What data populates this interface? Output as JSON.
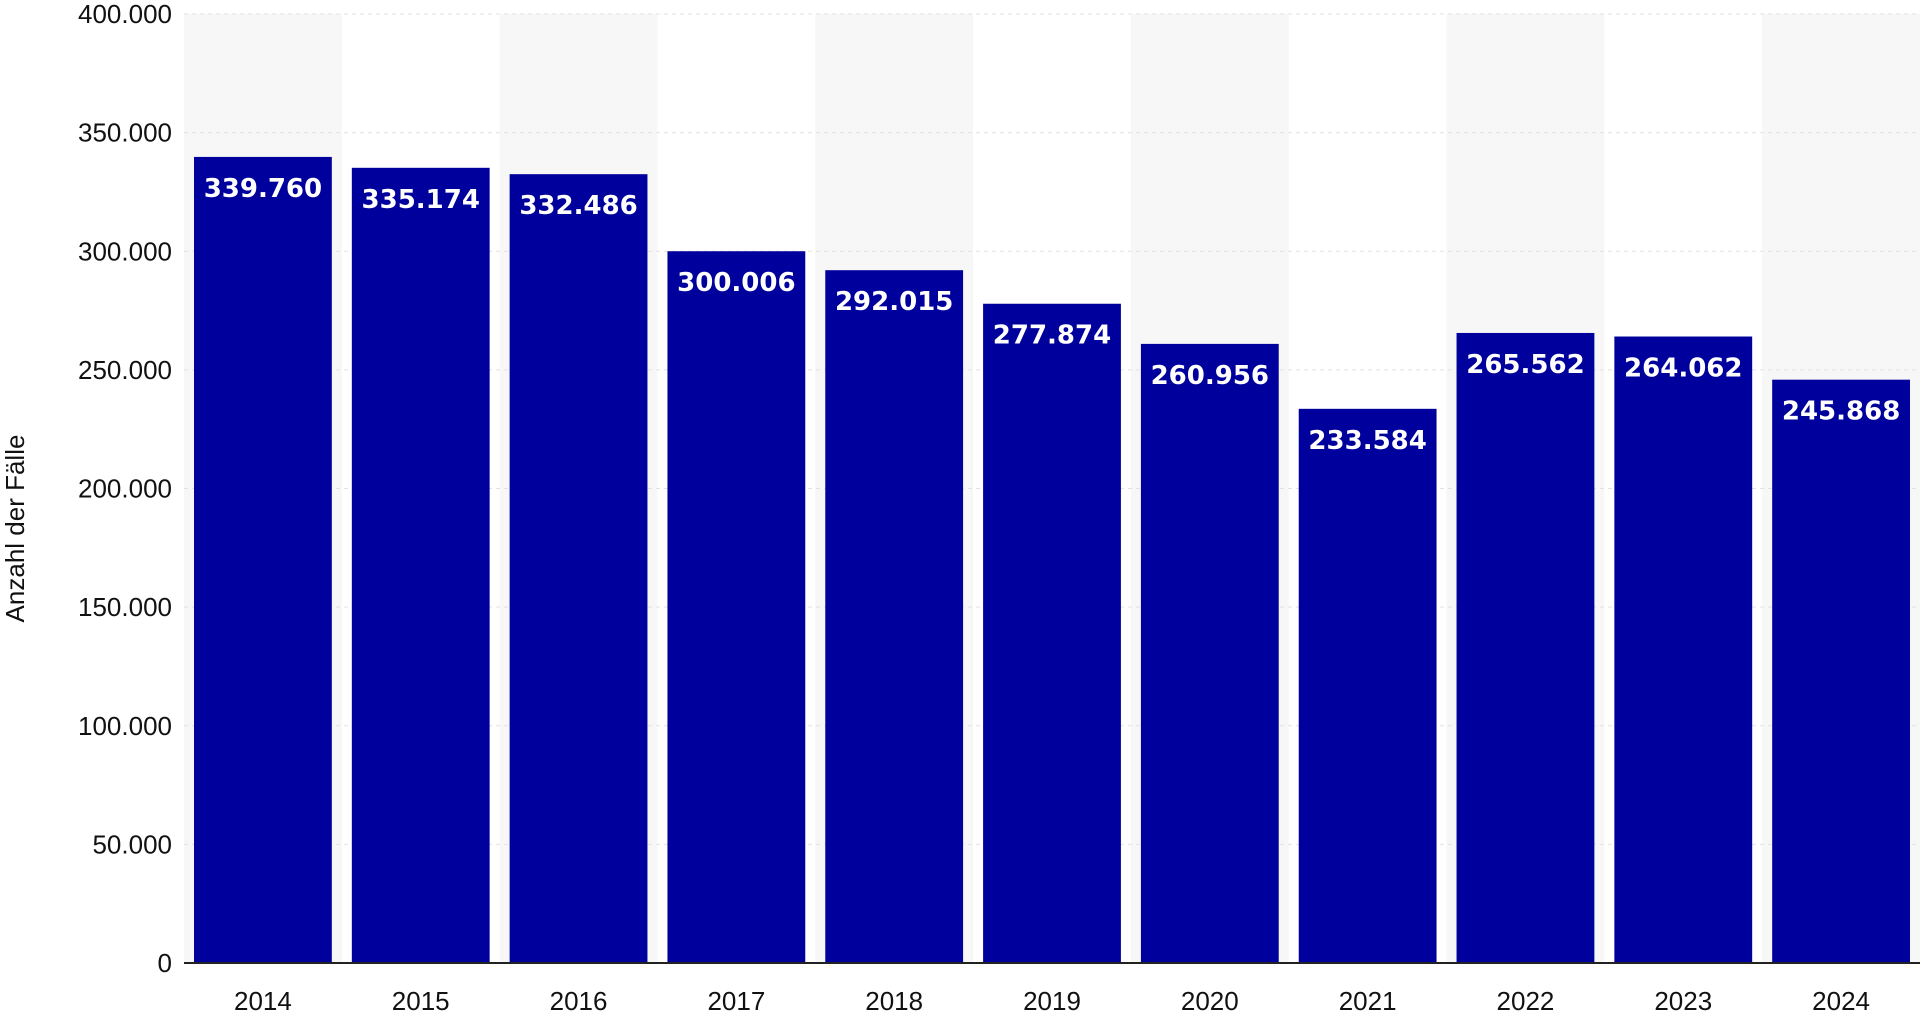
{
  "chart_data": {
    "type": "bar",
    "title": "",
    "xlabel": "",
    "ylabel": "Anzahl der Fälle",
    "categories": [
      "2014",
      "2015",
      "2016",
      "2017",
      "2018",
      "2019",
      "2020",
      "2021",
      "2022",
      "2023",
      "2024"
    ],
    "values": [
      339760,
      335174,
      332486,
      300006,
      292015,
      277874,
      260956,
      233584,
      265562,
      264062,
      245868
    ],
    "value_labels": [
      "339.760",
      "335.174",
      "332.486",
      "300.006",
      "292.015",
      "277.874",
      "260.956",
      "233.584",
      "265.562",
      "264.062",
      "245.868"
    ],
    "ylim": [
      0,
      400000
    ],
    "yticks": [
      0,
      50000,
      100000,
      150000,
      200000,
      250000,
      300000,
      350000,
      400000
    ],
    "ytick_labels": [
      "0",
      "50.000",
      "100.000",
      "150.000",
      "200.000",
      "250.000",
      "300.000",
      "350.000",
      "400.000"
    ],
    "grid": true,
    "legend": "none",
    "colors": {
      "bar": "#00009c",
      "band": "#f7f7f7",
      "grid": "#e2e2e2",
      "axis": "#222222",
      "label_text": "#ffffff"
    }
  }
}
